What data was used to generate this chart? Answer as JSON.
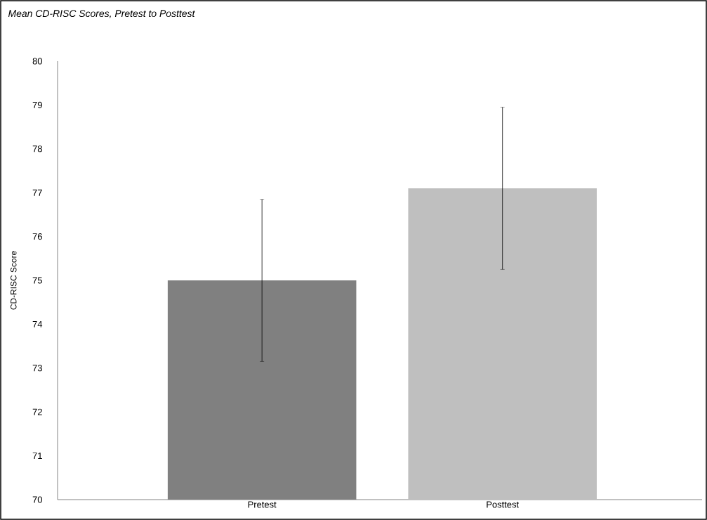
{
  "chart_data": {
    "type": "bar",
    "title": "Mean CD-RISC Scores, Pretest to Posttest",
    "ylabel": "CD-RISC Score",
    "categories": [
      "Pretest",
      "Posttest"
    ],
    "values": [
      75.0,
      77.1
    ],
    "errors": [
      1.85,
      1.85
    ],
    "colors": [
      "#808080",
      "#bfbfbf"
    ],
    "ylim": [
      70,
      80
    ],
    "yticks": [
      70,
      71,
      72,
      73,
      74,
      75,
      76,
      77,
      78,
      79,
      80
    ],
    "grid": false
  }
}
